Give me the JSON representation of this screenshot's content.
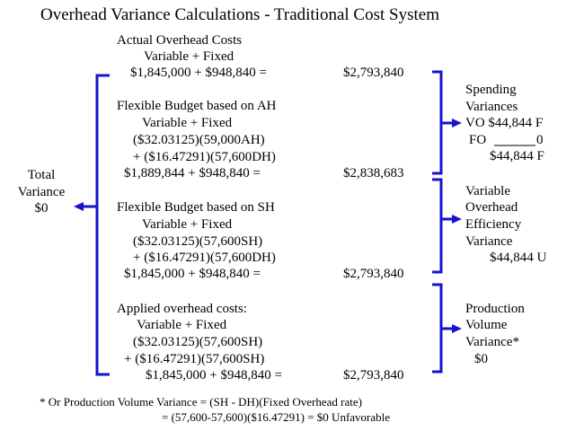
{
  "title": "Overhead Variance Calculations - Traditional Cost System",
  "sections": {
    "actual": {
      "heading": "Actual Overhead Costs",
      "sub": "Variable + Fixed",
      "calc": "$1,845,000 + $948,840 =",
      "total": "$2,793,840"
    },
    "flex_ah": {
      "heading": "Flexible Budget based on AH",
      "sub": "Variable + Fixed",
      "line1": "($32.03125)(59,000AH)",
      "line2": "+ ($16.47291)(57,600DH)",
      "calc": "$1,889,844 + $948,840 =",
      "total": "$2,838,683"
    },
    "flex_sh": {
      "heading": "Flexible Budget based on SH",
      "sub": "Variable + Fixed",
      "line1": "($32.03125)(57,600SH)",
      "line2": "+ ($16.47291)(57,600DH)",
      "calc": "$1,845,000 + $948,840 =",
      "total": "$2,793,840"
    },
    "applied": {
      "heading": "Applied overhead costs:",
      "sub": "Variable + Fixed",
      "line1": "($32.03125)(57,600SH)",
      "line2": "+ ($16.47291)(57,600SH)",
      "calc": "$1,845,000 + $948,840 =",
      "total": "$2,793,840"
    }
  },
  "total_variance": {
    "line1": "Total",
    "line2": "Variance",
    "value": "$0"
  },
  "spending": {
    "line1": "Spending",
    "line2": "Variances",
    "vo": "VO $44,844 F",
    "fo_label": "FO",
    "fo_value": "0",
    "total": "$44,844 F"
  },
  "efficiency": {
    "line1": "Variable",
    "line2": "Overhead",
    "line3": "Efficiency",
    "line4": "Variance",
    "value": "$44,844 U"
  },
  "volume": {
    "line1": "Production",
    "line2": "Volume",
    "line3": "Variance*",
    "value": "$0"
  },
  "footnote": {
    "line1": "* Or Production Volume Variance = (SH - DH)(Fixed Overhead rate)",
    "line2": "= (57,600-57,600)($16.47291) = $0 Unfavorable"
  },
  "colors": {
    "bracket": "#1414cc",
    "text": "#000000"
  }
}
